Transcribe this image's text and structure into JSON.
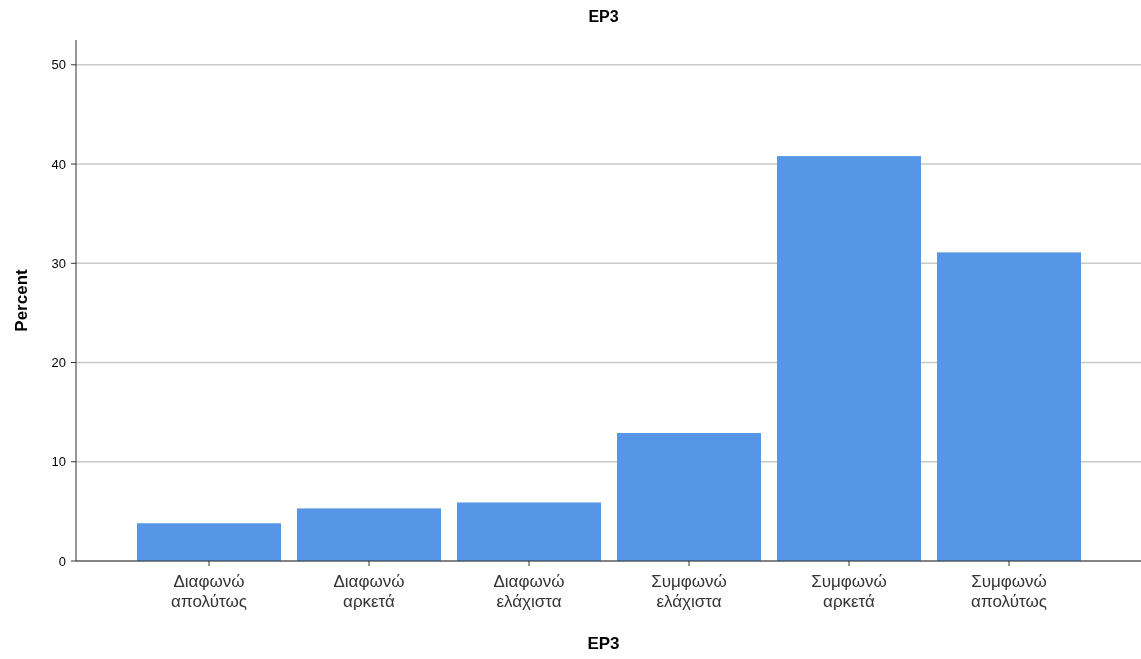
{
  "chart_data": {
    "type": "bar",
    "title": "EP3",
    "xlabel": "EP3",
    "ylabel": "Percent",
    "categories": [
      "Διαφωνώ απολύτως",
      "Διαφωνώ αρκετά",
      "Διαφωνώ ελάχιστα",
      "Συμφωνώ ελάχιστα",
      "Συμφωνώ αρκετά",
      "Συμφωνώ απολύτως"
    ],
    "values": [
      3.8,
      5.3,
      5.9,
      12.9,
      40.8,
      31.1
    ],
    "color": "#5596e6",
    "ylim": [
      0,
      52.5
    ],
    "yticks": [
      0,
      10,
      20,
      30,
      40,
      50
    ],
    "grid": "y"
  }
}
